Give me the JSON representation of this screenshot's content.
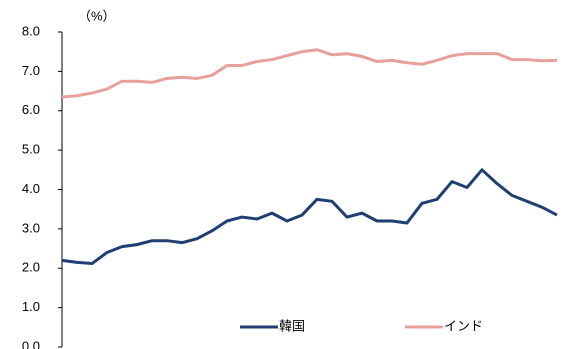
{
  "chart_data": {
    "type": "line",
    "unit_label": "（%）",
    "ylim": [
      0,
      8
    ],
    "yticks": [
      {
        "value": 0,
        "label": "0.0"
      },
      {
        "value": 1,
        "label": "1.0"
      },
      {
        "value": 2,
        "label": "2.0"
      },
      {
        "value": 3,
        "label": "3.0"
      },
      {
        "value": 4,
        "label": "4.0"
      },
      {
        "value": 5,
        "label": "5.0"
      },
      {
        "value": 6,
        "label": "6.0"
      },
      {
        "value": 7,
        "label": "7.0"
      },
      {
        "value": 8,
        "label": "8.0"
      }
    ],
    "grid": false,
    "legend": "lower center",
    "series": [
      {
        "name": "韓国",
        "color": "#1f3f74",
        "values": [
          2.2,
          2.15,
          2.12,
          2.4,
          2.55,
          2.6,
          2.7,
          2.7,
          2.65,
          2.75,
          2.95,
          3.2,
          3.3,
          3.25,
          3.4,
          3.2,
          3.35,
          3.75,
          3.7,
          3.3,
          3.4,
          3.2,
          3.2,
          3.15,
          3.65,
          3.75,
          4.2,
          4.05,
          4.5,
          4.15,
          3.85,
          3.7,
          3.55,
          3.35
        ]
      },
      {
        "name": "インド",
        "color": "#e8a09c",
        "values": [
          6.35,
          6.38,
          6.45,
          6.55,
          6.75,
          6.75,
          6.72,
          6.82,
          6.85,
          6.82,
          6.9,
          7.15,
          7.15,
          7.25,
          7.3,
          7.4,
          7.5,
          7.55,
          7.42,
          7.45,
          7.38,
          7.25,
          7.28,
          7.22,
          7.18,
          7.28,
          7.4,
          7.45,
          7.45,
          7.45,
          7.3,
          7.3,
          7.27,
          7.28
        ]
      }
    ]
  }
}
